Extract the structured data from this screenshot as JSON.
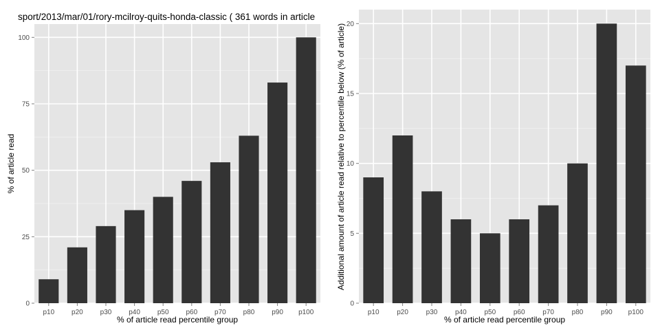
{
  "chart_data": [
    {
      "type": "bar",
      "title": "sport/2013/mar/01/rory-mcilroy-quits-honda-classic ( 361 words in article",
      "xlabel": "% of article read percentile group",
      "ylabel": "% of article read",
      "categories": [
        "p10",
        "p20",
        "p30",
        "p40",
        "p50",
        "p60",
        "p70",
        "p80",
        "p90",
        "p100"
      ],
      "values": [
        9,
        21,
        29,
        35,
        40,
        46,
        53,
        63,
        83,
        100
      ],
      "ylim": [
        0,
        105
      ],
      "yticks": [
        0,
        25,
        50,
        75,
        100
      ],
      "grid": true,
      "bar_color": "#333333",
      "panel_color": "#e5e5e5",
      "grid_color": "#ffffff"
    },
    {
      "type": "bar",
      "title": "",
      "xlabel": "% of article read percentile group",
      "ylabel": "Additional amount of article read relative to percentile below (% of article)",
      "categories": [
        "p10",
        "p20",
        "p30",
        "p40",
        "p50",
        "p60",
        "p70",
        "p80",
        "p90",
        "p100"
      ],
      "values": [
        9,
        12,
        8,
        6,
        5,
        6,
        7,
        10,
        20,
        17
      ],
      "ylim": [
        0,
        21
      ],
      "yticks": [
        0,
        5,
        10,
        15,
        20
      ],
      "grid": true,
      "bar_color": "#333333",
      "panel_color": "#e5e5e5",
      "grid_color": "#ffffff"
    }
  ]
}
